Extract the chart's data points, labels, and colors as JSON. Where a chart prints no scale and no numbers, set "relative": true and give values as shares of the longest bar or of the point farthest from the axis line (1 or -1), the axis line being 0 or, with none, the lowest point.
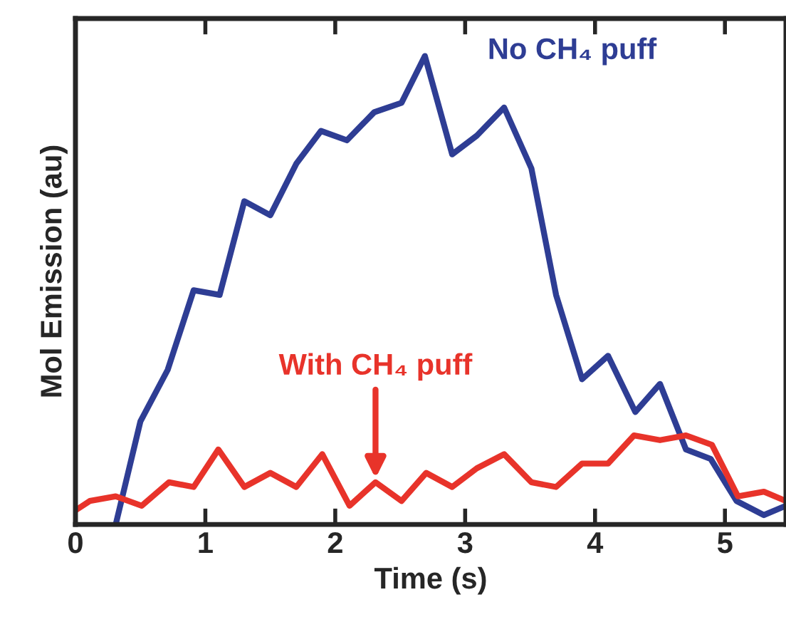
{
  "chart_data": {
    "type": "line",
    "relative": true,
    "xlabel": "Time (s)",
    "ylabel": "Mol Emission (au)",
    "xlim": [
      0,
      5.47
    ],
    "xticks": [
      0,
      1,
      2,
      3,
      4,
      5
    ],
    "grid": false,
    "legend": false,
    "marker": "none",
    "line_style": "solid",
    "series": [
      {
        "name": "No CH₄ puff",
        "color": "#2e3d94",
        "x": [
          0.31,
          0.5,
          0.71,
          0.91,
          1.11,
          1.3,
          1.5,
          1.7,
          1.89,
          2.09,
          2.3,
          2.51,
          2.69,
          2.9,
          3.09,
          3.3,
          3.51,
          3.7,
          3.9,
          4.1,
          4.31,
          4.5,
          4.7,
          4.89,
          5.09,
          5.3,
          5.47
        ],
        "values": [
          0,
          0.22,
          0.33,
          0.5,
          0.49,
          0.69,
          0.66,
          0.77,
          0.84,
          0.82,
          0.88,
          0.9,
          1.0,
          0.79,
          0.83,
          0.89,
          0.76,
          0.49,
          0.31,
          0.36,
          0.24,
          0.3,
          0.16,
          0.14,
          0.05,
          0.02,
          0.04
        ]
      },
      {
        "color": "#e8332a",
        "x": [
          0,
          0.11,
          0.31,
          0.51,
          0.72,
          0.91,
          1.1,
          1.3,
          1.5,
          1.7,
          1.9,
          2.11,
          2.31,
          2.51,
          2.7,
          2.9,
          3.09,
          3.3,
          3.51,
          3.7,
          3.9,
          4.1,
          4.3,
          4.5,
          4.7,
          4.9,
          5.1,
          5.3,
          5.47
        ],
        "values": [
          0.03,
          0.05,
          0.06,
          0.04,
          0.09,
          0.08,
          0.16,
          0.08,
          0.11,
          0.08,
          0.15,
          0.04,
          0.09,
          0.05,
          0.11,
          0.08,
          0.12,
          0.15,
          0.09,
          0.08,
          0.13,
          0.13,
          0.19,
          0.18,
          0.19,
          0.17,
          0.06,
          0.07,
          0.05
        ]
      }
    ],
    "annotations": [
      {
        "text": "With CH₄ puff",
        "x": 2.31,
        "y": 0.09
      }
    ]
  }
}
